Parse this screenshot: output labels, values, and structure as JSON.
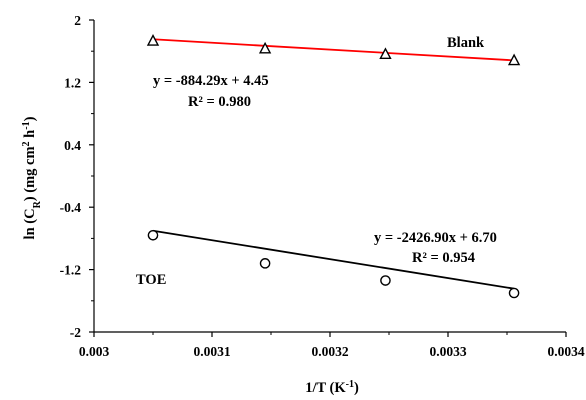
{
  "chart_data": {
    "type": "scatter",
    "xlabel": {
      "main": "1/T (K",
      "sup": "-1",
      "tail": ")"
    },
    "ylabel": {
      "p1": "ln (C",
      "sub": "R",
      "p2": ") (mg cm",
      "sup1": "2",
      "p3": " h",
      "sup2": "-1",
      "p4": ")"
    },
    "xlim": [
      0.003,
      0.0034
    ],
    "ylim": [
      -2,
      2
    ],
    "xticks": [
      0.003,
      0.0031,
      0.0032,
      0.0033,
      0.0034
    ],
    "xtick_labels": [
      "0.003",
      "0.0031",
      "0.0032",
      "0.0033",
      "0.0034"
    ],
    "yticks": [
      2,
      1.2,
      0.4,
      -0.4,
      -1.2,
      -2
    ],
    "ytick_labels": [
      "2",
      "1.2",
      "0.4",
      "-0.4",
      "-1.2",
      "-2"
    ],
    "grid": false,
    "series": [
      {
        "name": "Blank",
        "marker": "triangle",
        "line_color": "#ff0000",
        "x": [
          0.00305,
          0.003145,
          0.003247,
          0.003356
        ],
        "y": [
          1.73,
          1.63,
          1.56,
          1.48
        ],
        "fit": {
          "slope": -884.29,
          "intercept": 4.45
        },
        "equation": "y = -884.29x + 4.45",
        "r2": "R² = 0.980"
      },
      {
        "name": "TOE",
        "marker": "circle",
        "line_color": "#000000",
        "x": [
          0.00305,
          0.003145,
          0.003247,
          0.003356
        ],
        "y": [
          -0.76,
          -1.12,
          -1.34,
          -1.5
        ],
        "fit": {
          "slope": -2426.9,
          "intercept": 6.7
        },
        "equation": "y = -2426.90x + 6.70",
        "r2": "R² = 0.954"
      }
    ]
  }
}
